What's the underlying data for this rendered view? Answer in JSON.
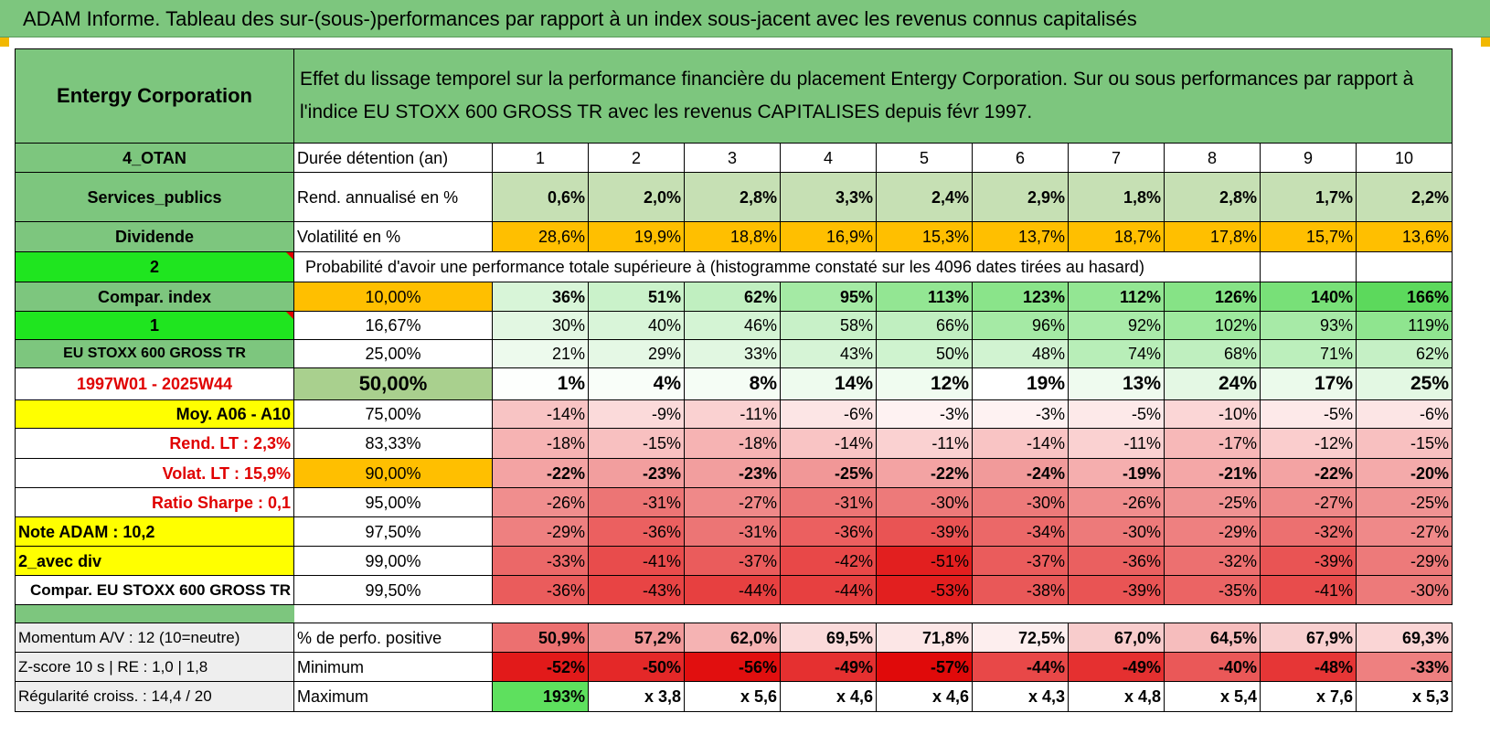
{
  "title": "ADAM Informe. Tableau des sur-(sous-)performances par rapport à un index sous-jacent avec les revenus connus capitalisés",
  "company": "Entergy Corporation",
  "description": "Effet du lissage temporel sur la performance financière du placement Entergy Corporation. Sur ou sous performances par rapport à l'indice EU STOXX 600 GROSS TR avec les revenus CAPITALISES depuis févr 1997.",
  "side": {
    "otan": "4_OTAN",
    "sector": "Services_publics",
    "dividende": "Dividende",
    "two": "2",
    "compar": "Compar. index",
    "one": "1",
    "index_name": "EU STOXX 600 GROSS TR",
    "period": "1997W01 - 2025W44",
    "moy": "Moy. A06 - A10",
    "rend_lt": "Rend. LT :    2,3%",
    "volat_lt": "Volat. LT :    15,9%",
    "sharpe": "Ratio Sharpe :    0,1",
    "note": "Note ADAM : 10,2",
    "avec_div": "2_avec div",
    "compar_eu": "Compar. EU STOXX 600 GROSS TR"
  },
  "row_labels": {
    "duree": "Durée détention (an)",
    "rend": "Rend. annualisé en %",
    "vol": "Volatilité en %",
    "proba": "Probabilité d'avoir une performance totale supérieure à (histogramme constaté sur les 4096 dates tirées au hasard)"
  },
  "years": [
    "1",
    "2",
    "3",
    "4",
    "5",
    "6",
    "7",
    "8",
    "9",
    "10"
  ],
  "rend": [
    "0,6%",
    "2,0%",
    "2,8%",
    "3,3%",
    "2,4%",
    "2,9%",
    "1,8%",
    "2,8%",
    "1,7%",
    "2,2%"
  ],
  "vol": [
    "28,6%",
    "19,9%",
    "18,8%",
    "16,9%",
    "15,3%",
    "13,7%",
    "18,7%",
    "17,8%",
    "15,7%",
    "13,6%"
  ],
  "percentiles": [
    {
      "p": "10,00%",
      "v": [
        "36%",
        "51%",
        "62%",
        "95%",
        "113%",
        "123%",
        "112%",
        "126%",
        "140%",
        "166%"
      ]
    },
    {
      "p": "16,67%",
      "v": [
        "30%",
        "40%",
        "46%",
        "58%",
        "66%",
        "96%",
        "92%",
        "102%",
        "93%",
        "119%"
      ]
    },
    {
      "p": "25,00%",
      "v": [
        "21%",
        "29%",
        "33%",
        "43%",
        "50%",
        "48%",
        "74%",
        "68%",
        "71%",
        "62%"
      ]
    },
    {
      "p": "50,00%",
      "v": [
        "1%",
        "4%",
        "8%",
        "14%",
        "12%",
        "19%",
        "13%",
        "24%",
        "17%",
        "25%"
      ]
    },
    {
      "p": "75,00%",
      "v": [
        "-14%",
        "-9%",
        "-11%",
        "-6%",
        "-3%",
        "-3%",
        "-5%",
        "-10%",
        "-5%",
        "-6%"
      ]
    },
    {
      "p": "83,33%",
      "v": [
        "-18%",
        "-15%",
        "-18%",
        "-14%",
        "-11%",
        "-14%",
        "-11%",
        "-17%",
        "-12%",
        "-15%"
      ]
    },
    {
      "p": "90,00%",
      "v": [
        "-22%",
        "-23%",
        "-23%",
        "-25%",
        "-22%",
        "-24%",
        "-19%",
        "-21%",
        "-22%",
        "-20%"
      ]
    },
    {
      "p": "95,00%",
      "v": [
        "-26%",
        "-31%",
        "-27%",
        "-31%",
        "-30%",
        "-30%",
        "-26%",
        "-25%",
        "-27%",
        "-25%"
      ]
    },
    {
      "p": "97,50%",
      "v": [
        "-29%",
        "-36%",
        "-31%",
        "-36%",
        "-39%",
        "-34%",
        "-30%",
        "-29%",
        "-32%",
        "-27%"
      ]
    },
    {
      "p": "99,00%",
      "v": [
        "-33%",
        "-41%",
        "-37%",
        "-42%",
        "-51%",
        "-37%",
        "-36%",
        "-32%",
        "-39%",
        "-29%"
      ]
    },
    {
      "p": "99,50%",
      "v": [
        "-36%",
        "-43%",
        "-44%",
        "-44%",
        "-53%",
        "-38%",
        "-39%",
        "-35%",
        "-41%",
        "-30%"
      ]
    }
  ],
  "bottom": {
    "momentum": "Momentum A/V : 12 (10=neutre)",
    "zscore": "Z-score 10 s | RE : 1,0 | 1,8",
    "regularite": "Régularité croiss. : 14,4 / 20",
    "pos_label": "% de perfo. positive",
    "min_label": "Minimum",
    "max_label": "Maximum",
    "pos": [
      "50,9%",
      "57,2%",
      "62,0%",
      "69,5%",
      "71,8%",
      "72,5%",
      "67,0%",
      "64,5%",
      "67,9%",
      "69,3%"
    ],
    "min": [
      "-52%",
      "-50%",
      "-56%",
      "-49%",
      "-57%",
      "-44%",
      "-49%",
      "-40%",
      "-48%",
      "-33%"
    ],
    "max": [
      "193%",
      "x 3,8",
      "x 5,6",
      "x 4,6",
      "x 4,6",
      "x 4,3",
      "x 4,8",
      "x 5,4",
      "x 7,6",
      "x 5,3"
    ]
  },
  "colors": {
    "header_green": "#7dc67e",
    "rend_green": "#c6e0b4",
    "vol_orange": "#ffbf00",
    "bright_green": "#1fe51f",
    "yellow": "#ffff00"
  }
}
